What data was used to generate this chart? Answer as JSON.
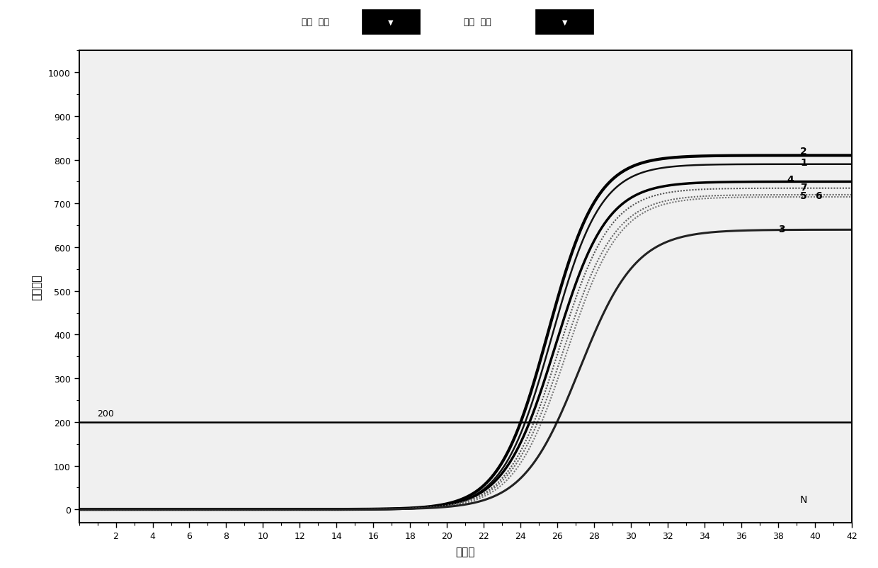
{
  "xlabel": "循环数",
  "ylabel": "荧光强度",
  "xlim": [
    0,
    42
  ],
  "ylim": [
    -30,
    1050
  ],
  "xticks": [
    2,
    4,
    6,
    8,
    10,
    12,
    14,
    16,
    18,
    20,
    22,
    24,
    26,
    28,
    30,
    32,
    34,
    36,
    38,
    40,
    42
  ],
  "yticks": [
    0,
    100,
    200,
    300,
    400,
    500,
    600,
    700,
    800,
    900,
    1000
  ],
  "threshold_y": 200,
  "threshold_label": "200",
  "negative_label": "N",
  "background_color": "#ffffff",
  "plot_bg_color": "#f0f0f0",
  "toolbar_text1": "颜色  孔位",
  "toolbar_text2": "线型  线性",
  "curves": [
    {
      "label": "2",
      "plateau": 810,
      "midpoint": 25.5,
      "steepness": 0.75,
      "style": "solid",
      "color": "#000000",
      "lw": 3.0
    },
    {
      "label": "1",
      "plateau": 790,
      "midpoint": 25.7,
      "steepness": 0.75,
      "style": "solid",
      "color": "#111111",
      "lw": 1.8
    },
    {
      "label": "4",
      "plateau": 750,
      "midpoint": 25.9,
      "steepness": 0.72,
      "style": "solid",
      "color": "#000000",
      "lw": 2.5
    },
    {
      "label": "7",
      "plateau": 735,
      "midpoint": 26.1,
      "steepness": 0.72,
      "style": "dotted",
      "color": "#555555",
      "lw": 1.5
    },
    {
      "label": "5",
      "plateau": 720,
      "midpoint": 26.3,
      "steepness": 0.7,
      "style": "dotted",
      "color": "#666666",
      "lw": 1.5
    },
    {
      "label": "6",
      "plateau": 715,
      "midpoint": 26.5,
      "steepness": 0.7,
      "style": "dotted",
      "color": "#777777",
      "lw": 1.5
    },
    {
      "label": "3",
      "plateau": 640,
      "midpoint": 27.2,
      "steepness": 0.65,
      "style": "solid",
      "color": "#222222",
      "lw": 2.2
    }
  ],
  "label_positions": [
    [
      "2",
      39.2,
      820
    ],
    [
      "1",
      39.2,
      795
    ],
    [
      "4",
      38.5,
      755
    ],
    [
      "7",
      39.2,
      738
    ],
    [
      "5",
      39.2,
      718
    ],
    [
      "6",
      40.0,
      718
    ],
    [
      "3",
      38.0,
      642
    ]
  ]
}
